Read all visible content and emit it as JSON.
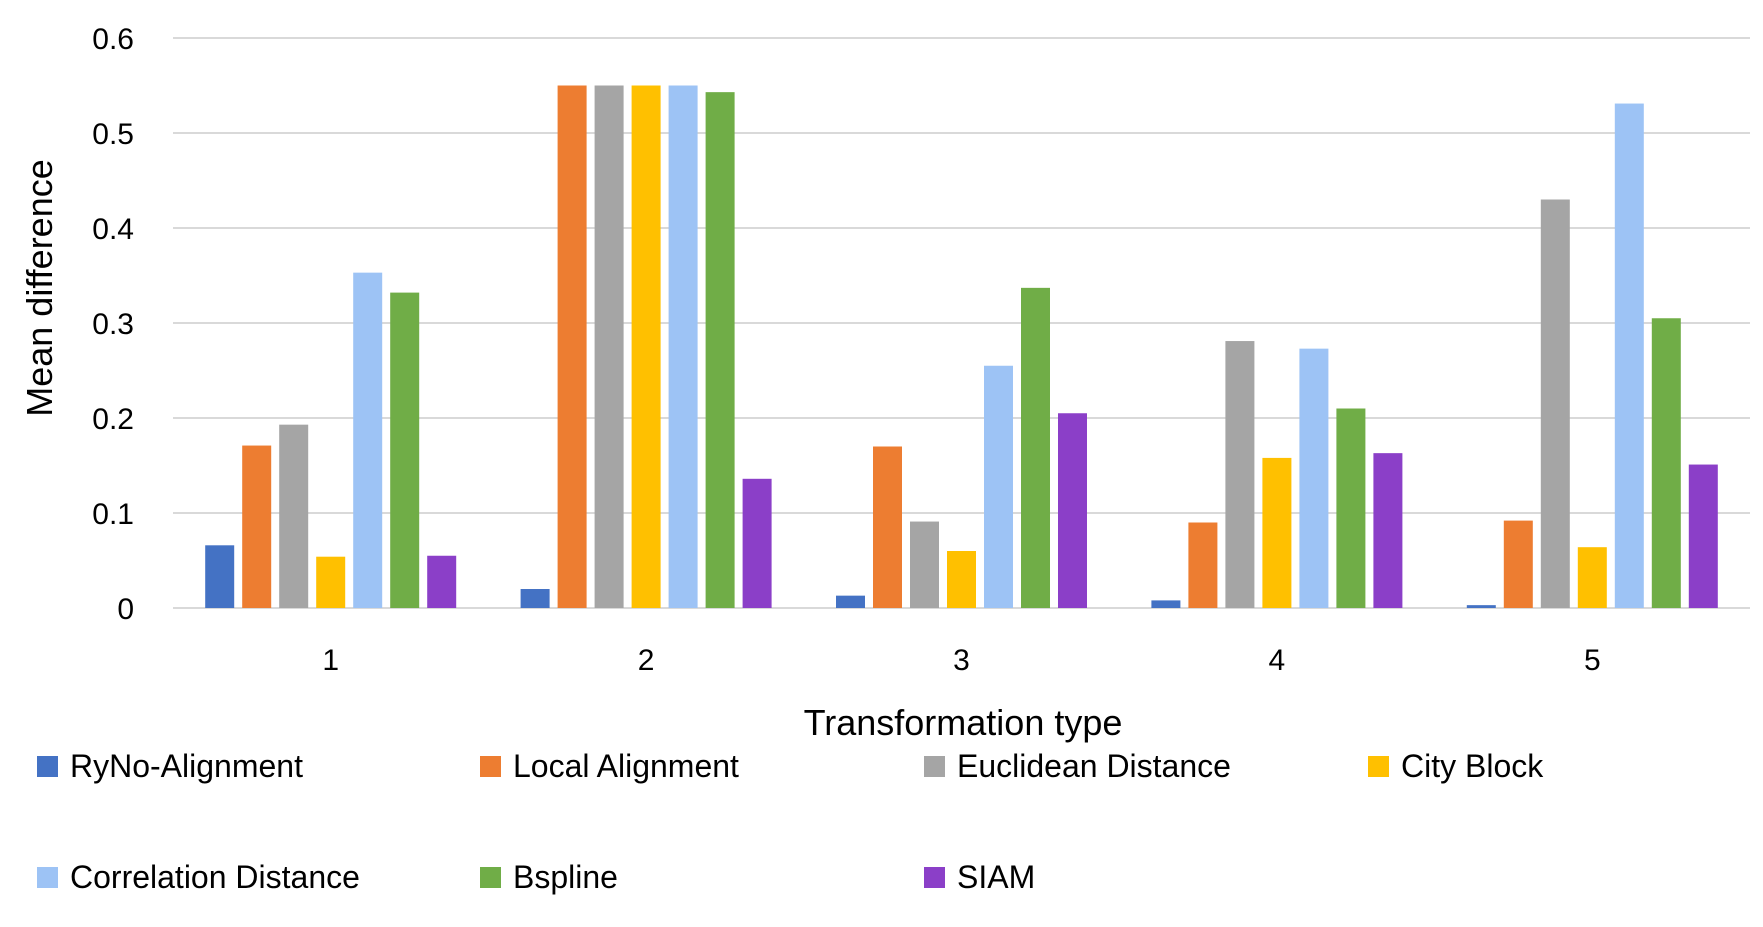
{
  "chart_data": {
    "type": "bar",
    "title": "",
    "xlabel": "Transformation type",
    "ylabel": "Mean difference",
    "categories": [
      "1",
      "2",
      "3",
      "4",
      "5"
    ],
    "ylim": [
      0,
      0.6
    ],
    "yticks": [
      0,
      0.1,
      0.2,
      0.3,
      0.4,
      0.5,
      0.6
    ],
    "ytick_labels": [
      "0",
      "0.1",
      "0.2",
      "0.3",
      "0.4",
      "0.5",
      "0.6"
    ],
    "grid": true,
    "legend_position": "bottom",
    "series": [
      {
        "name": "RyNo-Alignment",
        "color": "#4472c4",
        "values": [
          0.066,
          0.02,
          0.013,
          0.008,
          0.003
        ]
      },
      {
        "name": "Local Alignment",
        "color": "#ed7d31",
        "values": [
          0.171,
          0.55,
          0.17,
          0.09,
          0.092
        ]
      },
      {
        "name": "Euclidean Distance",
        "color": "#a5a5a5",
        "values": [
          0.193,
          0.55,
          0.091,
          0.281,
          0.43
        ]
      },
      {
        "name": "City Block",
        "color": "#ffc000",
        "values": [
          0.054,
          0.55,
          0.06,
          0.158,
          0.064
        ]
      },
      {
        "name": "Correlation Distance",
        "color": "#9dc3f5",
        "values": [
          0.353,
          0.55,
          0.255,
          0.273,
          0.531
        ]
      },
      {
        "name": "Bspline",
        "color": "#70ad47",
        "values": [
          0.332,
          0.543,
          0.337,
          0.21,
          0.305
        ]
      },
      {
        "name": "SIAM",
        "color": "#8b3fc8",
        "values": [
          0.055,
          0.136,
          0.205,
          0.163,
          0.151
        ]
      }
    ]
  }
}
